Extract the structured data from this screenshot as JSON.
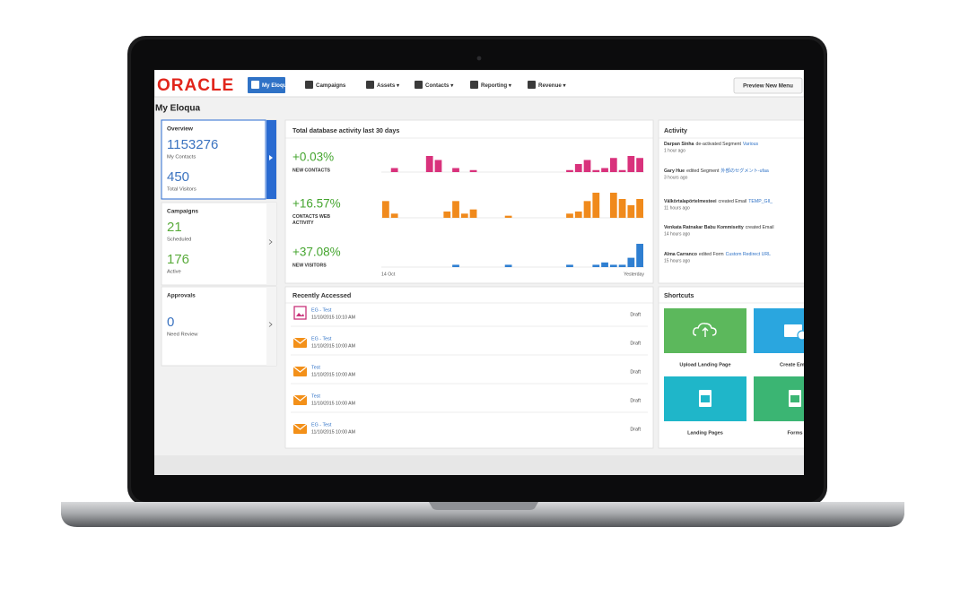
{
  "nav": {
    "logo": "ORACLE",
    "items": [
      "My Eloqua",
      "Campaigns",
      "Assets ▾",
      "Contacts ▾",
      "Reporting ▾",
      "Revenue ▾"
    ],
    "preview_button": "Preview New Menu"
  },
  "page_title": "My Eloqua",
  "overview": {
    "title": "Overview",
    "stats": [
      {
        "value": "1153276",
        "label": "My Contacts"
      },
      {
        "value": "450",
        "label": "Total Visitors"
      }
    ]
  },
  "campaigns": {
    "title": "Campaigns",
    "stats": [
      {
        "value": "21",
        "label": "Scheduled"
      },
      {
        "value": "176",
        "label": "Active"
      }
    ]
  },
  "approvals": {
    "title": "Approvals",
    "stats": [
      {
        "value": "0",
        "label": "Need Review"
      }
    ]
  },
  "activity_chart": {
    "title": "Total database activity last 30 days",
    "axis_start": "14 Oct",
    "axis_end": "Yesterday",
    "rows": [
      {
        "change": "+0.03%",
        "label": "NEW CONTACTS",
        "color": "#d9327c",
        "bars": [
          0,
          2,
          0,
          0,
          0,
          8,
          6,
          0,
          2,
          0,
          1,
          0,
          0,
          0,
          0,
          0,
          0,
          0,
          0,
          0,
          0,
          1,
          4,
          6,
          1,
          2,
          7,
          1,
          8,
          7
        ]
      },
      {
        "change": "+16.57%",
        "label": "CONTACTS WEB ACTIVITY",
        "color": "#f08a1c",
        "bars": [
          8,
          2,
          0,
          0,
          0,
          0,
          0,
          3,
          8,
          2,
          4,
          0,
          0,
          0,
          1,
          0,
          0,
          0,
          0,
          0,
          0,
          2,
          3,
          8,
          12,
          0,
          12,
          9,
          6,
          9
        ]
      },
      {
        "change": "+37.08%",
        "label": "NEW VISITORS",
        "color": "#2f7fd1",
        "bars": [
          0,
          0,
          0,
          0,
          0,
          0,
          0,
          0,
          1,
          0,
          0,
          0,
          0,
          0,
          1,
          0,
          0,
          0,
          0,
          0,
          0,
          1,
          0,
          0,
          1,
          2,
          1,
          1,
          4,
          10
        ]
      }
    ]
  },
  "recently_accessed": {
    "title": "Recently Accessed",
    "items": [
      {
        "name": "EG - Test",
        "date": "11/10/2015 10:10 AM",
        "status": "Draft",
        "kind": "landing-page"
      },
      {
        "name": "EG - Test",
        "date": "11/10/2015 10:00 AM",
        "status": "Draft",
        "kind": "email"
      },
      {
        "name": "Test",
        "date": "11/10/2015 10:00 AM",
        "status": "Draft",
        "kind": "email"
      },
      {
        "name": "Test",
        "date": "11/10/2015 10:00 AM",
        "status": "Draft",
        "kind": "email"
      },
      {
        "name": "EG - Test",
        "date": "11/10/2015 10:00 AM",
        "status": "Draft",
        "kind": "email"
      }
    ]
  },
  "activity": {
    "title": "Activity",
    "entries": [
      {
        "actor": "Darpan Sinha",
        "action": "de-activated Segment",
        "target": "Various",
        "time": "1 hour ago"
      },
      {
        "actor": "Gary Hue",
        "action": "edited Segment",
        "target": "外部のセグメント-ufaa",
        "time": "3 hours ago"
      },
      {
        "actor": "Välkörtalapörtelmesteei",
        "action": "created Email",
        "target": "TEMP_GIl_",
        "time": "11 hours ago"
      },
      {
        "actor": "Venkata Ratnakar Babu Kommisetty",
        "action": "created Email",
        "target": "",
        "time": "14 hours ago"
      },
      {
        "actor": "Alma Carranco",
        "action": "edited Form",
        "target": "Custom Redirect URL",
        "time": "15 hours ago"
      }
    ]
  },
  "shortcuts": {
    "title": "Shortcuts",
    "tiles": [
      {
        "label": "Upload Landing Page",
        "color": "#5cb85c"
      },
      {
        "label": "Create Email",
        "color": "#2aa6df"
      },
      {
        "label": "Landing Pages",
        "color": "#1fb6c9"
      },
      {
        "label": "Forms",
        "color": "#3bb573"
      }
    ]
  }
}
